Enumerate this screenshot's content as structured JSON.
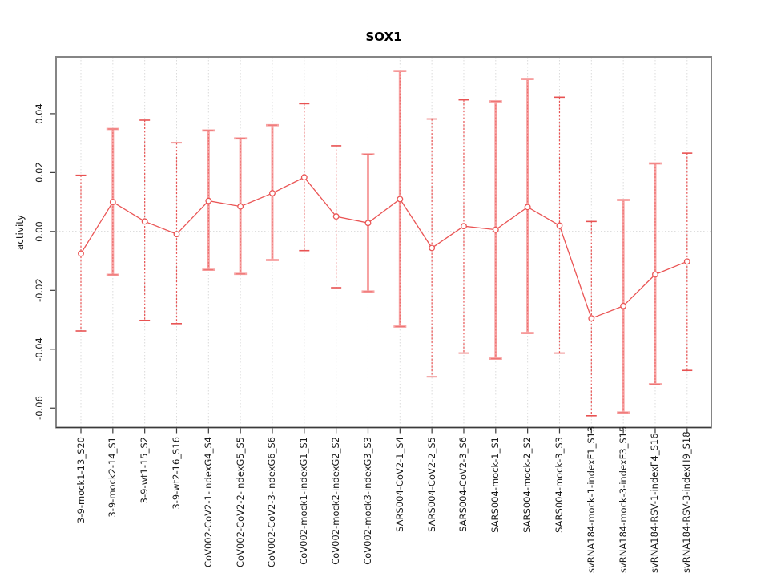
{
  "chart_data": {
    "type": "line",
    "title": "SOX1",
    "xlabel": "",
    "ylabel": "activity",
    "legend": "none",
    "grid": "dotted vertical gridline per category; dotted horizontal line at y=0",
    "ylim": [
      -0.0666,
      0.0593
    ],
    "ytick_values": [
      0.04,
      0.02,
      0,
      -0.02,
      -0.04,
      -0.06
    ],
    "ytick_labels": [
      "0.04",
      "0.02",
      "0.00",
      "-0.02",
      "-0.04",
      "-0.06"
    ],
    "categories": [
      "3-9-mock1-13_S20",
      "3-9-mock2-14_S1",
      "3-9-wt1-15_S2",
      "3-9-wt2-16_S16",
      "CoV002-CoV2-1-indexG4_S4",
      "CoV002-CoV2-2-indexG5_S5",
      "CoV002-CoV2-3-indexG6_S6",
      "CoV002-mock1-indexG1_S1",
      "CoV002-mock2-indexG2_S2",
      "CoV002-mock3-indexG3_S3",
      "SARS004-CoV2-1_S4",
      "SARS004-CoV2-2_S5",
      "SARS004-CoV2-3_S6",
      "SARS004-mock-1_S1",
      "SARS004-mock-2_S2",
      "SARS004-mock-3_S3",
      "svRNA184-mock-1-indexF1_S13",
      "svRNA184-mock-3-indexF3_S15",
      "svRNA184-RSV-1-indexF4_S16",
      "svRNA184-RSV-3-indexH9_S18"
    ],
    "series": [
      {
        "name": "activity",
        "marker": "open-circle",
        "values": [
          -0.0075,
          0.01,
          0.0034,
          -0.0009,
          0.0104,
          0.0085,
          0.013,
          0.0184,
          0.0051,
          0.0029,
          0.011,
          -0.0056,
          0.0018,
          0.0006,
          0.0083,
          0.002,
          -0.0295,
          -0.0253,
          -0.0146,
          -0.0102
        ],
        "error_high": [
          0.0191,
          0.0348,
          0.0378,
          0.0301,
          0.0343,
          0.0316,
          0.0361,
          0.0434,
          0.0291,
          0.0262,
          0.0545,
          0.0382,
          0.0447,
          0.0442,
          0.0518,
          0.0456,
          0.0034,
          0.0107,
          0.0231,
          0.0266
        ],
        "error_low": [
          -0.0338,
          -0.0147,
          -0.0302,
          -0.0313,
          -0.013,
          -0.0144,
          -0.0097,
          -0.0065,
          -0.0191,
          -0.0204,
          -0.0323,
          -0.0494,
          -0.0413,
          -0.0432,
          -0.0345,
          -0.0413,
          -0.0626,
          -0.0615,
          -0.0519,
          -0.0472
        ],
        "bar_styles": [
          "dotted",
          "pale",
          "dotted",
          "dotted",
          "pale",
          "pale",
          "pale",
          "dotted",
          "dotted",
          "pale",
          "pale",
          "dotted",
          "dotted",
          "pale",
          "pale",
          "dotted",
          "dotted",
          "pale",
          "pale",
          "dotted"
        ]
      }
    ],
    "colors": {
      "line": "#EA5555",
      "error_pale": "#F7A2A2",
      "error_dark": "#E85252",
      "marker_fill": "#FFFFFF",
      "grid": "#DBDBDB",
      "zero_line": "#C9C9C9",
      "box": "#858585",
      "axis": "#3A3A3A",
      "text": "#1A1A1A"
    }
  }
}
